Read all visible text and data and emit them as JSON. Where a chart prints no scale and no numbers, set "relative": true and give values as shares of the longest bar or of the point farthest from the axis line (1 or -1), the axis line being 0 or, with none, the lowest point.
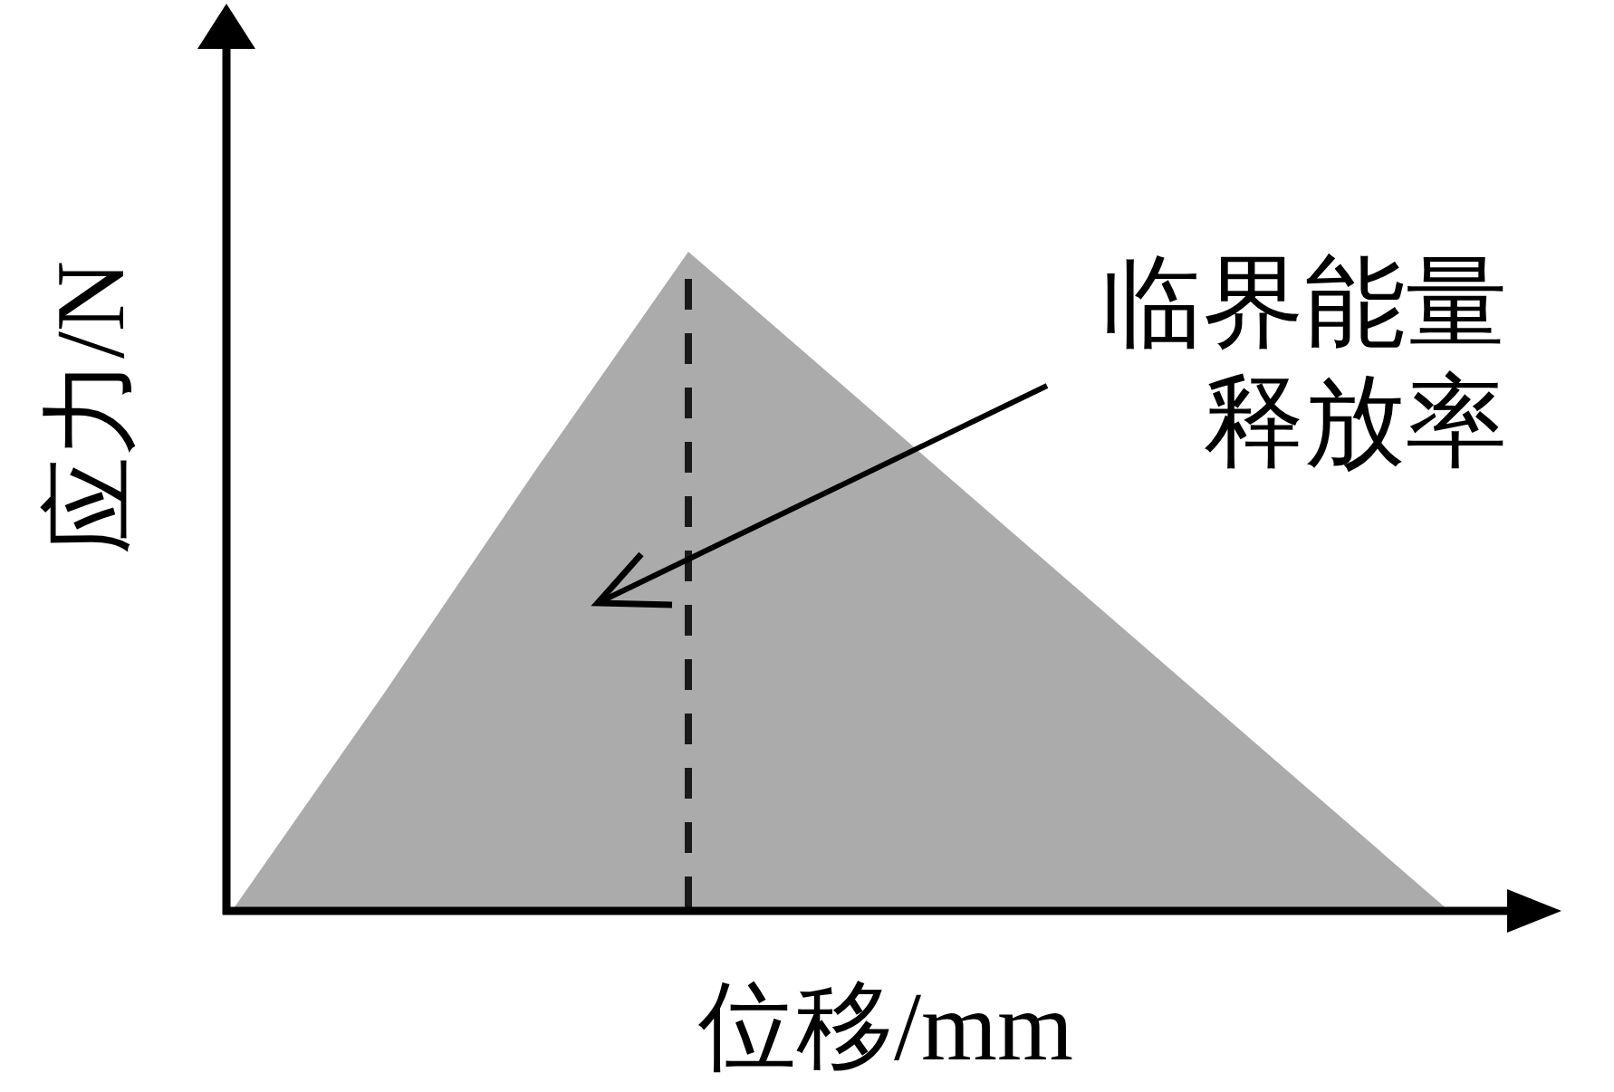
{
  "chart_data": {
    "type": "area",
    "relative": true,
    "xlabel": "位移/mm",
    "ylabel": "应力/N",
    "categories": [
      null,
      null,
      null,
      null,
      null,
      null,
      null,
      null,
      null
    ],
    "series": [
      {
        "color": "#ababab",
        "values": [
          0,
          0.33,
          0.67,
          1,
          0.8,
          0.6,
          0.4,
          0.2,
          0
        ]
      }
    ],
    "annotations": [
      "临界能量释放率"
    ]
  }
}
